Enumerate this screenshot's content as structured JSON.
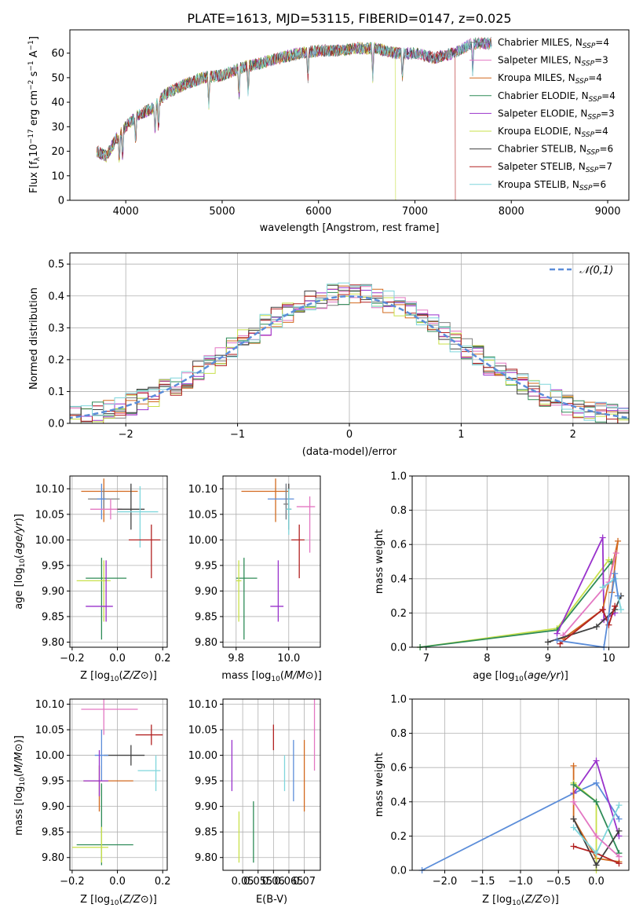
{
  "title": "PLATE=1613, MJD=53115, FIBERID=0147, z=0.025",
  "colors": {
    "Chabrier MILES": "#7f7f7f",
    "Salpeter MILES": "#e377c2",
    "Kroupa MILES": "#d2691e",
    "Chabrier ELODIE": "#2e8b57",
    "Salpeter ELODIE": "#9932cc",
    "Kroupa ELODIE": "#c8e04a",
    "Chabrier STELIB": "#404040",
    "Salpeter STELIB": "#b22222",
    "Kroupa STELIB": "#7fd6dc",
    "gaussian": "#5b8dd9",
    "extra_blue": "#6a8fd8"
  },
  "chart_data": [
    {
      "id": "spectrum",
      "type": "line",
      "title": "PLATE=1613, MJD=53115, FIBERID=0147, z=0.025",
      "xlabel": "wavelength [Angstrom, rest frame]",
      "ylabel_parts": [
        "Flux [f",
        "λ",
        "10",
        "−17",
        " erg cm",
        "−2",
        " s",
        "−1",
        " A",
        "−1",
        "]"
      ],
      "xlim": [
        3420,
        9220
      ],
      "ylim": [
        0,
        69.5
      ],
      "xticks": [
        4000,
        5000,
        6000,
        7000,
        8000,
        9000
      ],
      "yticks": [
        0,
        10,
        20,
        30,
        40,
        50,
        60
      ],
      "legend": [
        {
          "name": "Chabrier MILES",
          "n": 4
        },
        {
          "name": "Salpeter MILES",
          "n": 3
        },
        {
          "name": "Kroupa MILES",
          "n": 4
        },
        {
          "name": "Chabrier ELODIE",
          "n": 4
        },
        {
          "name": "Salpeter ELODIE",
          "n": 3
        },
        {
          "name": "Kroupa ELODIE",
          "n": 4
        },
        {
          "name": "Chabrier STELIB",
          "n": 6
        },
        {
          "name": "Salpeter STELIB",
          "n": 7
        },
        {
          "name": "Kroupa STELIB",
          "n": 6
        }
      ],
      "legend_placement": "right",
      "continuum_x": [
        3700,
        3800,
        3900,
        4000,
        4100,
        4200,
        4300,
        4400,
        4600,
        4800,
        5000,
        5200,
        5400,
        5600,
        5800,
        6000,
        6200,
        6400,
        6600,
        6800,
        7000,
        7200,
        7400,
        7600,
        7800
      ],
      "continuum_y": [
        20,
        18,
        25,
        30,
        34,
        36,
        38,
        43,
        47,
        50,
        51,
        54,
        56,
        58,
        60,
        61,
        61,
        62,
        62,
        60,
        60,
        58,
        60,
        64,
        64
      ],
      "dropouts": [
        {
          "series": "Kroupa ELODIE",
          "x": 6800
        },
        {
          "series": "Salpeter STELIB",
          "x": 7420
        }
      ]
    },
    {
      "id": "residuals",
      "type": "step",
      "xlabel": "(data-model)/error",
      "ylabel": "Normed distribution",
      "xlim": [
        -2.5,
        2.5
      ],
      "ylim": [
        0,
        0.535
      ],
      "xticks": [
        -2,
        -1,
        0,
        1,
        2
      ],
      "yticks": [
        0.0,
        0.1,
        0.2,
        0.3,
        0.4,
        0.5
      ],
      "reference": {
        "name": "𝒩(0,1)",
        "mean": 0,
        "sigma": 1
      },
      "legend_placement": "top-right",
      "bin_width": 0.1
    },
    {
      "id": "age_vs_Z",
      "type": "errorbar",
      "xlabel": "Z [log10(Z/Z⊙)]",
      "ylabel": "age  [log10(age/yr)]",
      "xlim": [
        -0.21,
        0.22
      ],
      "ylim": [
        9.79,
        10.125
      ],
      "xticks": [
        -0.2,
        0.0,
        0.2
      ],
      "yticks": [
        9.8,
        9.85,
        9.9,
        9.95,
        10.0,
        10.05,
        10.1
      ],
      "points": [
        {
          "series": "Kroupa MILES",
          "x": -0.06,
          "y": 10.095,
          "xerr": [
            0.1,
            0.15
          ],
          "yerr": [
            0.06,
            0.025
          ]
        },
        {
          "series": "Chabrier MILES",
          "x": -0.06,
          "y": 10.08,
          "xerr": [
            0.07,
            0.07
          ],
          "yerr": [
            0.02,
            0.02
          ]
        },
        {
          "series": "gaussian",
          "x": -0.07,
          "y": 10.08,
          "xerr": [
            0.02,
            0.02
          ],
          "yerr": [
            0.04,
            0.03
          ]
        },
        {
          "series": "Salpeter MILES",
          "x": -0.03,
          "y": 10.06,
          "xerr": [
            0.09,
            0.05
          ],
          "yerr": [
            0.02,
            0.02
          ]
        },
        {
          "series": "Chabrier STELIB",
          "x": 0.06,
          "y": 10.06,
          "xerr": [
            0.06,
            0.06
          ],
          "yerr": [
            0.04,
            0.05
          ]
        },
        {
          "series": "Kroupa STELIB",
          "x": 0.1,
          "y": 10.055,
          "xerr": [
            0.1,
            0.08
          ],
          "yerr": [
            0.07,
            0.05
          ]
        },
        {
          "series": "Salpeter STELIB",
          "x": 0.15,
          "y": 10.0,
          "xerr": [
            0.1,
            0.04
          ],
          "yerr": [
            0.075,
            0.03
          ]
        },
        {
          "series": "Chabrier ELODIE",
          "x": -0.07,
          "y": 9.925,
          "xerr": [
            0.07,
            0.11
          ],
          "yerr": [
            0.12,
            0.04
          ]
        },
        {
          "series": "Kroupa ELODIE",
          "x": -0.06,
          "y": 9.92,
          "xerr": [
            0.12,
            0.03
          ],
          "yerr": [
            0.08,
            0.04
          ]
        },
        {
          "series": "Salpeter ELODIE",
          "x": -0.05,
          "y": 9.87,
          "xerr": [
            0.09,
            0.03
          ],
          "yerr": [
            0.03,
            0.09
          ]
        }
      ]
    },
    {
      "id": "age_vs_mass",
      "type": "errorbar",
      "xlabel": "mass [log10(M/M⊙)]",
      "xlim": [
        9.75,
        10.12
      ],
      "ylim": [
        9.79,
        10.125
      ],
      "xticks": [
        9.8,
        10.0
      ],
      "yticks": [
        9.8,
        9.85,
        9.9,
        9.95,
        10.0,
        10.05,
        10.1
      ],
      "points": [
        {
          "series": "Kroupa MILES",
          "x": 9.95,
          "y": 10.095,
          "xerr": [
            0.13,
            0.05
          ],
          "yerr": [
            0.06,
            0.025
          ]
        },
        {
          "series": "gaussian",
          "x": 9.99,
          "y": 10.08,
          "xerr": [
            0.07,
            0.03
          ],
          "yerr": [
            0.04,
            0.03
          ]
        },
        {
          "series": "Chabrier STELIB",
          "x": 10.0,
          "y": 10.06,
          "xerr": [
            0.01,
            0.01
          ],
          "yerr": [
            0.04,
            0.05
          ]
        },
        {
          "series": "Chabrier MILES",
          "x": 9.99,
          "y": 10.07,
          "xerr": [
            0.01,
            0.01
          ],
          "yerr": [
            0.03,
            0.04
          ]
        },
        {
          "series": "Salpeter MILES",
          "x": 10.08,
          "y": 10.065,
          "xerr": [
            0.05,
            0.02
          ],
          "yerr": [
            0.09,
            0.02
          ]
        },
        {
          "series": "Kroupa STELIB",
          "x": 10.0,
          "y": 10.06,
          "xerr": [
            0.01,
            0.01
          ],
          "yerr": [
            0.05,
            0.04
          ]
        },
        {
          "series": "Salpeter STELIB",
          "x": 10.04,
          "y": 10.0,
          "xerr": [
            0.03,
            0.02
          ],
          "yerr": [
            0.075,
            0.03
          ]
        },
        {
          "series": "Chabrier ELODIE",
          "x": 9.83,
          "y": 9.925,
          "xerr": [
            0.03,
            0.05
          ],
          "yerr": [
            0.12,
            0.04
          ]
        },
        {
          "series": "Kroupa ELODIE",
          "x": 9.81,
          "y": 9.92,
          "xerr": [
            0.01,
            0.01
          ],
          "yerr": [
            0.08,
            0.04
          ]
        },
        {
          "series": "Salpeter ELODIE",
          "x": 9.96,
          "y": 9.87,
          "xerr": [
            0.03,
            0.02
          ],
          "yerr": [
            0.03,
            0.09
          ]
        }
      ]
    },
    {
      "id": "mass_weight_vs_age",
      "type": "line",
      "xlabel": "age  [log10(age/yr)]",
      "ylabel": "mass weight",
      "xlim": [
        6.77,
        10.33
      ],
      "ylim": [
        0,
        1
      ],
      "xticks": [
        7,
        8,
        9,
        10
      ],
      "yticks": [
        0.0,
        0.2,
        0.4,
        0.6,
        0.8,
        1.0
      ],
      "series": [
        {
          "name": "Kroupa ELODIE",
          "x": [
            6.9,
            9.15,
            10.0
          ],
          "y": [
            0.0,
            0.11,
            0.51
          ]
        },
        {
          "name": "Chabrier ELODIE",
          "x": [
            6.9,
            9.15,
            10.05
          ],
          "y": [
            0.0,
            0.1,
            0.5
          ]
        },
        {
          "name": "Salpeter ELODIE",
          "x": [
            9.15,
            9.9,
            9.92,
            10.1
          ],
          "y": [
            0.08,
            0.64,
            0.16,
            0.2
          ]
        },
        {
          "name": "Kroupa MILES",
          "x": [
            9.25,
            9.9,
            10.15,
            10.05
          ],
          "y": [
            0.05,
            0.22,
            0.62,
            0.32
          ]
        },
        {
          "name": "Salpeter MILES",
          "x": [
            9.25,
            10.0,
            10.12
          ],
          "y": [
            0.07,
            0.38,
            0.55
          ]
        },
        {
          "name": "Chabrier STELIB",
          "x": [
            9.0,
            9.8,
            10.1,
            10.2
          ],
          "y": [
            0.03,
            0.12,
            0.22,
            0.3
          ]
        },
        {
          "name": "Salpeter STELIB",
          "x": [
            9.2,
            9.9,
            10.0,
            10.1
          ],
          "y": [
            0.02,
            0.22,
            0.13,
            0.24
          ]
        },
        {
          "name": "Kroupa STELIB",
          "x": [
            9.9,
            10.1,
            10.2
          ],
          "y": [
            0.35,
            0.4,
            0.22
          ]
        },
        {
          "name": "gaussian",
          "x": [
            9.15,
            9.92,
            10.1,
            10.15
          ],
          "y": [
            0.04,
            0.0,
            0.43,
            0.3
          ]
        }
      ]
    },
    {
      "id": "mass_vs_Z",
      "type": "errorbar",
      "xlabel": "Z [log10(Z/Z⊙)]",
      "ylabel": "mass [log10(M/M⊙)]",
      "xlim": [
        -0.21,
        0.22
      ],
      "ylim": [
        9.775,
        10.11
      ],
      "xticks": [
        -0.2,
        0.0,
        0.2
      ],
      "yticks": [
        9.8,
        9.85,
        9.9,
        9.95,
        10.0,
        10.05,
        10.1
      ],
      "points": [
        {
          "series": "Salpeter MILES",
          "x": -0.06,
          "y": 10.09,
          "xerr": [
            0.1,
            0.15
          ],
          "yerr": [
            0.05,
            0.03
          ]
        },
        {
          "series": "Salpeter STELIB",
          "x": 0.15,
          "y": 10.04,
          "xerr": [
            0.07,
            0.05
          ],
          "yerr": [
            0.02,
            0.02
          ]
        },
        {
          "series": "Chabrier STELIB",
          "x": 0.06,
          "y": 10.0,
          "xerr": [
            0.12,
            0.06
          ],
          "yerr": [
            0.02,
            0.02
          ]
        },
        {
          "series": "gaussian",
          "x": -0.07,
          "y": 10.0,
          "xerr": [
            0.03,
            0.03
          ],
          "yerr": [
            0.05,
            0.05
          ]
        },
        {
          "series": "Kroupa STELIB",
          "x": 0.17,
          "y": 9.97,
          "xerr": [
            0.08,
            0.02
          ],
          "yerr": [
            0.04,
            0.03
          ]
        },
        {
          "series": "Kroupa MILES",
          "x": -0.08,
          "y": 9.95,
          "xerr": [
            0.07,
            0.15
          ],
          "yerr": [
            0.06,
            0.03
          ]
        },
        {
          "series": "Salpeter ELODIE",
          "x": -0.08,
          "y": 9.95,
          "xerr": [
            0.07,
            0.04
          ],
          "yerr": [
            0.03,
            0.06
          ]
        },
        {
          "series": "Chabrier ELODIE",
          "x": -0.07,
          "y": 9.825,
          "xerr": [
            0.11,
            0.14
          ],
          "yerr": [
            0.04,
            0.12
          ]
        },
        {
          "series": "Kroupa ELODIE",
          "x": -0.07,
          "y": 9.82,
          "xerr": [
            0.13,
            0.03
          ],
          "yerr": [
            0.03,
            0.04
          ]
        }
      ]
    },
    {
      "id": "mass_vs_EBV",
      "type": "errorbar",
      "xlabel": "E(B-V)",
      "xlim": [
        0.0436,
        0.0752
      ],
      "ylim": [
        9.775,
        10.11
      ],
      "xticks": [
        0.05,
        0.055,
        0.06,
        0.065,
        0.07
      ],
      "yticks": [
        9.8,
        9.85,
        9.9,
        9.95,
        10.0,
        10.05,
        10.1
      ],
      "points": [
        {
          "series": "Salpeter ELODIE",
          "x": 0.0465,
          "y": 9.98,
          "xerr": [
            0,
            0
          ],
          "yerr": [
            0.05,
            0.05
          ]
        },
        {
          "series": "Kroupa ELODIE",
          "x": 0.0488,
          "y": 9.84,
          "xerr": [
            0,
            0
          ],
          "yerr": [
            0.05,
            0.05
          ]
        },
        {
          "series": "Chabrier ELODIE",
          "x": 0.0535,
          "y": 9.85,
          "xerr": [
            0,
            0
          ],
          "yerr": [
            0.06,
            0.06
          ]
        },
        {
          "series": "Salpeter STELIB",
          "x": 0.06,
          "y": 10.035,
          "xerr": [
            0,
            0
          ],
          "yerr": [
            0.025,
            0.025
          ]
        },
        {
          "series": "Kroupa STELIB",
          "x": 0.0636,
          "y": 9.965,
          "xerr": [
            0,
            0
          ],
          "yerr": [
            0.035,
            0.035
          ]
        },
        {
          "series": "gaussian",
          "x": 0.0665,
          "y": 9.97,
          "xerr": [
            0,
            0
          ],
          "yerr": [
            0.06,
            0.06
          ]
        },
        {
          "series": "Kroupa MILES",
          "x": 0.07,
          "y": 9.96,
          "xerr": [
            0,
            0
          ],
          "yerr": [
            0.07,
            0.07
          ]
        },
        {
          "series": "Salpeter MILES",
          "x": 0.0733,
          "y": 10.04,
          "xerr": [
            0,
            0
          ],
          "yerr": [
            0.07,
            0.07
          ]
        }
      ]
    },
    {
      "id": "mass_weight_vs_Z",
      "type": "line",
      "xlabel": "Z [log10(Z/Z⊙)]",
      "ylabel": "mass weight",
      "xlim": [
        -2.43,
        0.43
      ],
      "ylim": [
        0,
        1
      ],
      "xticks": [
        -2.0,
        -1.5,
        -1.0,
        -0.5,
        0.0
      ],
      "xtick_labels": [
        "−2.0",
        "−1.5",
        "−1.0",
        "−0.5",
        "0.0"
      ],
      "yticks": [
        0.0,
        0.2,
        0.4,
        0.6,
        0.8,
        1.0
      ],
      "series": [
        {
          "name": "gaussian",
          "x": [
            -2.3,
            -0.3,
            0.0,
            0.3
          ],
          "y": [
            0.0,
            0.45,
            0.51,
            0.3
          ]
        },
        {
          "name": "Salpeter ELODIE",
          "x": [
            -0.3,
            0.0,
            0.3
          ],
          "y": [
            0.45,
            0.64,
            0.2
          ]
        },
        {
          "name": "Kroupa MILES",
          "x": [
            -0.3,
            -0.3,
            0.0,
            0.3
          ],
          "y": [
            0.61,
            0.3,
            0.07,
            0.05
          ]
        },
        {
          "name": "Kroupa ELODIE",
          "x": [
            -0.3,
            0.0,
            0.0
          ],
          "y": [
            0.51,
            0.4,
            0.0
          ]
        },
        {
          "name": "Chabrier ELODIE",
          "x": [
            -0.3,
            0.0,
            0.3
          ],
          "y": [
            0.5,
            0.4,
            0.1
          ]
        },
        {
          "name": "Chabrier STELIB",
          "x": [
            -0.3,
            0.0,
            0.3
          ],
          "y": [
            0.3,
            0.03,
            0.23
          ]
        },
        {
          "name": "Salpeter STELIB",
          "x": [
            -0.3,
            0.0,
            0.3
          ],
          "y": [
            0.14,
            0.1,
            0.04
          ]
        },
        {
          "name": "Kroupa STELIB",
          "x": [
            -0.3,
            0.0,
            0.3
          ],
          "y": [
            0.25,
            0.1,
            0.38
          ]
        },
        {
          "name": "Salpeter MILES",
          "x": [
            -0.3,
            0.0,
            0.3
          ],
          "y": [
            0.4,
            0.2,
            0.08
          ]
        }
      ]
    }
  ]
}
